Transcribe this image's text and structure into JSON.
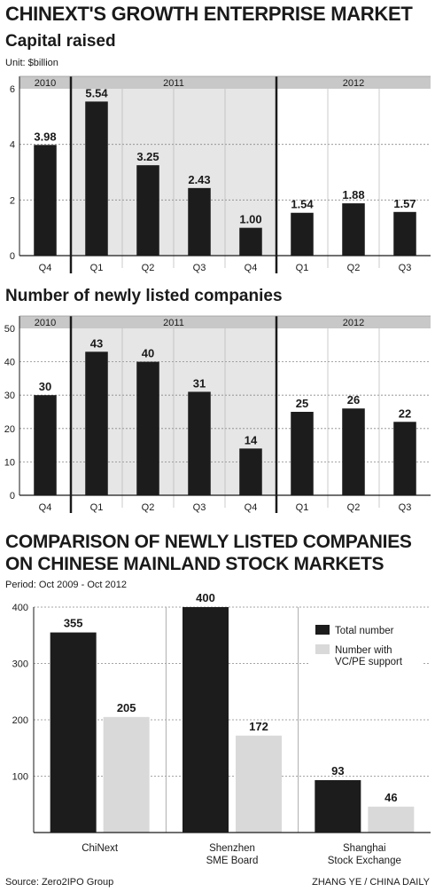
{
  "main_title": "CHINEXT'S GROWTH ENTERPRISE MARKET",
  "source": "Source: Zero2IPO Group",
  "credit": "ZHANG YE / CHINA DAILY",
  "colors": {
    "bar": "#1c1c1c",
    "light_bar": "#d9d9d9",
    "band": "#e6e6e6",
    "header": "#c8c8c8",
    "grid": "#888888"
  },
  "chart_data": [
    {
      "type": "bar",
      "title": "Capital raised",
      "unit_note": "Unit: $billion",
      "categories": [
        "Q4",
        "Q1",
        "Q2",
        "Q3",
        "Q4",
        "Q1",
        "Q2",
        "Q3"
      ],
      "value_labels": [
        "3.98",
        "5.54",
        "3.25",
        "2.43",
        "1.00",
        "1.54",
        "1.88",
        "1.57"
      ],
      "values": [
        3.98,
        5.54,
        3.25,
        2.43,
        1.0,
        1.54,
        1.88,
        1.57
      ],
      "year_groups": [
        {
          "label": "2010",
          "count": 1
        },
        {
          "label": "2011",
          "count": 4
        },
        {
          "label": "2012",
          "count": 3
        }
      ],
      "ylim": [
        0,
        6
      ],
      "yticks": [
        0,
        2,
        4,
        6
      ],
      "grid": true
    },
    {
      "type": "bar",
      "title": "Number of newly listed companies",
      "categories": [
        "Q4",
        "Q1",
        "Q2",
        "Q3",
        "Q4",
        "Q1",
        "Q2",
        "Q3"
      ],
      "value_labels": [
        "30",
        "43",
        "40",
        "31",
        "14",
        "25",
        "26",
        "22"
      ],
      "values": [
        30,
        43,
        40,
        31,
        14,
        25,
        26,
        22
      ],
      "year_groups": [
        {
          "label": "2010",
          "count": 1
        },
        {
          "label": "2011",
          "count": 4
        },
        {
          "label": "2012",
          "count": 3
        }
      ],
      "ylim": [
        0,
        50
      ],
      "yticks": [
        0,
        10,
        20,
        30,
        40,
        50
      ],
      "grid": true
    },
    {
      "type": "bar",
      "title": "COMPARISON OF NEWLY LISTED COMPANIES ON CHINESE MAINLAND STOCK MARKETS",
      "period_note": "Period: Oct 2009 - Oct 2012",
      "categories": [
        "ChiNext",
        "Shenzhen SME Board",
        "Shanghai Stock Exchange"
      ],
      "category_lines": [
        [
          "ChiNext"
        ],
        [
          "Shenzhen",
          "SME Board"
        ],
        [
          "Shanghai",
          "Stock Exchange"
        ]
      ],
      "series": [
        {
          "name": "Total number",
          "values": [
            355,
            400,
            93
          ],
          "value_labels": [
            "355",
            "400",
            "93"
          ]
        },
        {
          "name": "Number with VC/PE support",
          "legend_lines": [
            "Number with",
            "VC/PE support"
          ],
          "values": [
            205,
            172,
            46
          ],
          "value_labels": [
            "205",
            "172",
            "46"
          ]
        }
      ],
      "ylim": [
        0,
        400
      ],
      "yticks": [
        100,
        200,
        300,
        400
      ],
      "legend": "top-right"
    }
  ]
}
